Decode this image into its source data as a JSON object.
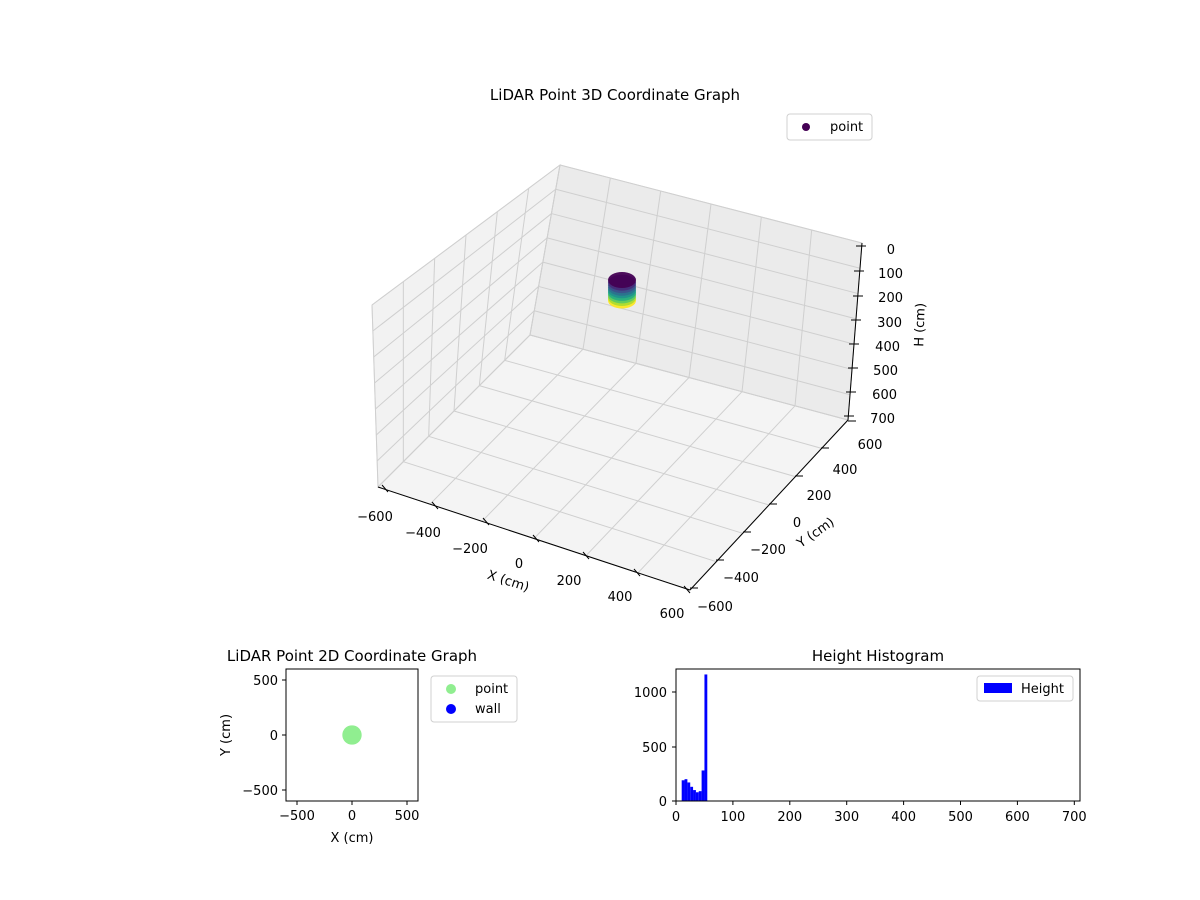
{
  "chart_data": [
    {
      "type": "scatter",
      "title": "LiDAR Point 3D Coordinate Graph",
      "xlabel": "X (cm)",
      "ylabel": "Y (cm)",
      "zlabel": "H (cm)",
      "xlim": [
        -600,
        600
      ],
      "ylim": [
        -600,
        600
      ],
      "zlim": [
        700,
        0
      ],
      "z_axis_inverted": true,
      "xticks": [
        "−600",
        "−400",
        "−200",
        "0",
        "200",
        "400",
        "600"
      ],
      "yticks": [
        "−600",
        "−400",
        "−200",
        "0",
        "200",
        "400",
        "600"
      ],
      "zticks": [
        "0",
        "100",
        "200",
        "300",
        "400",
        "500",
        "600",
        "700"
      ],
      "legend": {
        "position": "top-right",
        "entries": [
          {
            "label": "point",
            "color": "#440154"
          }
        ]
      },
      "colormap": "viridis",
      "grid": true,
      "cluster": {
        "x_center": 0,
        "y_center": 0,
        "radius": 40,
        "h_min": 0,
        "h_max": 50
      }
    },
    {
      "type": "scatter",
      "title": "LiDAR Point 2D Coordinate Graph",
      "xlabel": "X (cm)",
      "ylabel": "Y (cm)",
      "xlim": [
        -600,
        600
      ],
      "ylim": [
        -600,
        600
      ],
      "xticks": [
        "−500",
        "0",
        "500"
      ],
      "yticks": [
        "−500",
        "0",
        "500"
      ],
      "legend": {
        "position": "outside-right",
        "entries": [
          {
            "label": "point",
            "color": "#90ee90"
          },
          {
            "label": "wall",
            "color": "#0000ff"
          }
        ]
      },
      "series": [
        {
          "name": "point",
          "color": "#90ee90",
          "x_center": 0,
          "y_center": 0,
          "radius": 40
        }
      ]
    },
    {
      "type": "bar",
      "title": "Height Histogram",
      "xlim": [
        0,
        710
      ],
      "ylim": [
        0,
        1210
      ],
      "xticks": [
        "0",
        "100",
        "200",
        "300",
        "400",
        "500",
        "600",
        "700"
      ],
      "yticks": [
        "0",
        "500",
        "1000"
      ],
      "legend": {
        "position": "top-right",
        "entries": [
          {
            "label": "Height",
            "color": "#0000ff"
          }
        ]
      },
      "series": [
        {
          "name": "Height",
          "color": "#0000ff",
          "bin_width": 5,
          "bins_start": [
            10,
            15,
            20,
            25,
            30,
            35,
            40,
            45,
            50
          ],
          "counts": [
            190,
            200,
            170,
            130,
            100,
            80,
            90,
            280,
            1160
          ]
        }
      ]
    }
  ]
}
